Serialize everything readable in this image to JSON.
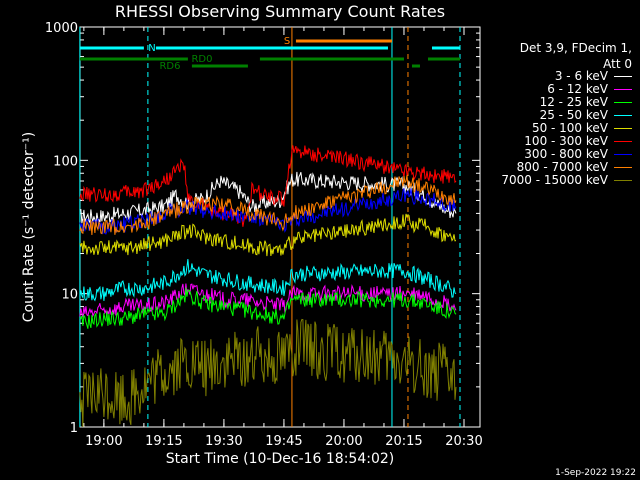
{
  "chart_data": {
    "type": "line",
    "title": "RHESSI Observing Summary Count Rates",
    "xlabel": "Start Time (10-Dec-16 18:54:02)",
    "ylabel": "Count Rate (s⁻¹ detector⁻¹)",
    "y_scale": "log",
    "ylim": [
      1,
      1000
    ],
    "y_ticks": [
      {
        "value": 1,
        "label": "1"
      },
      {
        "value": 10,
        "label": "10"
      },
      {
        "value": 100,
        "label": "100"
      },
      {
        "value": 1000,
        "label": "1000"
      }
    ],
    "xlim": [
      "18:54:02",
      "20:34:00"
    ],
    "x_ticks": [
      "19:00",
      "19:15",
      "19:30",
      "19:45",
      "20:00",
      "20:15",
      "20:30"
    ],
    "grid": false,
    "legend_position": "right",
    "series": [
      {
        "name": "3 - 6 keV",
        "color": "#ffffff",
        "points": [
          [
            "18:54",
            38
          ],
          [
            "19:00",
            38
          ],
          [
            "19:05",
            40
          ],
          [
            "19:10",
            42
          ],
          [
            "19:15",
            45
          ],
          [
            "19:18",
            55
          ],
          [
            "19:21",
            48
          ],
          [
            "19:25",
            52
          ],
          [
            "19:29",
            70
          ],
          [
            "19:31",
            65
          ],
          [
            "19:34",
            58
          ],
          [
            "19:37",
            45
          ],
          [
            "19:40",
            48
          ],
          [
            "19:44",
            50
          ],
          [
            "19:47",
            72
          ],
          [
            "20:15",
            65
          ],
          [
            "20:20",
            55
          ],
          [
            "20:24",
            45
          ],
          [
            "20:28",
            40
          ]
        ]
      },
      {
        "name": "6 - 12 keV",
        "color": "#ff00ff",
        "points": [
          [
            "18:54",
            7
          ],
          [
            "19:00",
            7.5
          ],
          [
            "19:05",
            8
          ],
          [
            "19:10",
            8
          ],
          [
            "19:15",
            8.5
          ],
          [
            "19:21",
            11
          ],
          [
            "19:25",
            10
          ],
          [
            "19:30",
            9
          ],
          [
            "19:35",
            9
          ],
          [
            "19:40",
            8.5
          ],
          [
            "19:45",
            8
          ],
          [
            "19:47",
            10
          ],
          [
            "20:15",
            10
          ],
          [
            "20:20",
            9.5
          ],
          [
            "20:25",
            8.5
          ],
          [
            "20:28",
            7.5
          ]
        ]
      },
      {
        "name": "12 - 25 keV",
        "color": "#00ff00",
        "points": [
          [
            "18:54",
            6
          ],
          [
            "19:00",
            6.5
          ],
          [
            "19:05",
            6.5
          ],
          [
            "19:10",
            7
          ],
          [
            "19:15",
            7
          ],
          [
            "19:21",
            10
          ],
          [
            "19:25",
            8.5
          ],
          [
            "19:30",
            8
          ],
          [
            "19:35",
            7.5
          ],
          [
            "19:40",
            7
          ],
          [
            "19:45",
            6.5
          ],
          [
            "19:47",
            9
          ],
          [
            "20:15",
            9
          ],
          [
            "20:20",
            8.5
          ],
          [
            "20:25",
            7.5
          ],
          [
            "20:28",
            7
          ]
        ]
      },
      {
        "name": "25 - 50 keV",
        "color": "#00ffff",
        "points": [
          [
            "18:54",
            10
          ],
          [
            "19:00",
            10
          ],
          [
            "19:05",
            11
          ],
          [
            "19:10",
            11
          ],
          [
            "19:15",
            12
          ],
          [
            "19:21",
            16
          ],
          [
            "19:25",
            14
          ],
          [
            "19:30",
            13
          ],
          [
            "19:35",
            12
          ],
          [
            "19:40",
            11.5
          ],
          [
            "19:45",
            11
          ],
          [
            "19:47",
            14
          ],
          [
            "20:15",
            15
          ],
          [
            "20:20",
            13
          ],
          [
            "20:25",
            11.5
          ],
          [
            "20:28",
            10
          ]
        ]
      },
      {
        "name": "50 - 100 keV",
        "color": "#dddd00",
        "points": [
          [
            "18:54",
            22
          ],
          [
            "19:00",
            22
          ],
          [
            "19:05",
            22
          ],
          [
            "19:10",
            23
          ],
          [
            "19:15",
            25
          ],
          [
            "19:21",
            30
          ],
          [
            "19:25",
            27
          ],
          [
            "19:30",
            25
          ],
          [
            "19:35",
            23
          ],
          [
            "19:40",
            22
          ],
          [
            "19:45",
            21
          ],
          [
            "19:47",
            25
          ],
          [
            "20:15",
            35
          ],
          [
            "20:20",
            32
          ],
          [
            "20:25",
            28
          ],
          [
            "20:28",
            25
          ]
        ]
      },
      {
        "name": "100 - 300 keV",
        "color": "#ff0000",
        "points": [
          [
            "18:54",
            55
          ],
          [
            "19:00",
            55
          ],
          [
            "19:05",
            57
          ],
          [
            "19:10",
            60
          ],
          [
            "19:15",
            70
          ],
          [
            "19:20",
            95
          ],
          [
            "19:21",
            50
          ],
          [
            "19:25",
            45
          ],
          [
            "19:30",
            40
          ],
          [
            "19:35",
            36
          ],
          [
            "19:37",
            60
          ],
          [
            "19:40",
            55
          ],
          [
            "19:45",
            50
          ],
          [
            "19:47",
            120
          ],
          [
            "20:15",
            85
          ],
          [
            "20:20",
            80
          ],
          [
            "20:25",
            75
          ],
          [
            "20:28",
            70
          ]
        ]
      },
      {
        "name": "300 - 800 keV",
        "color": "#0000ff",
        "points": [
          [
            "18:54",
            32
          ],
          [
            "19:00",
            32
          ],
          [
            "19:05",
            33
          ],
          [
            "19:10",
            35
          ],
          [
            "19:15",
            40
          ],
          [
            "19:21",
            45
          ],
          [
            "19:25",
            42
          ],
          [
            "19:30",
            40
          ],
          [
            "19:35",
            38
          ],
          [
            "19:40",
            35
          ],
          [
            "19:45",
            33
          ],
          [
            "19:47",
            35
          ],
          [
            "20:15",
            55
          ],
          [
            "20:20",
            52
          ],
          [
            "20:25",
            48
          ],
          [
            "20:28",
            45
          ]
        ]
      },
      {
        "name": "800 - 7000 keV",
        "color": "#ff8000",
        "points": [
          [
            "18:54",
            32
          ],
          [
            "19:00",
            31
          ],
          [
            "19:05",
            32
          ],
          [
            "19:10",
            34
          ],
          [
            "19:15",
            38
          ],
          [
            "19:20",
            45
          ],
          [
            "19:25",
            47
          ],
          [
            "19:30",
            46
          ],
          [
            "19:35",
            42
          ],
          [
            "19:40",
            37
          ],
          [
            "19:45",
            34
          ],
          [
            "19:47",
            40
          ],
          [
            "20:15",
            70
          ],
          [
            "20:20",
            62
          ],
          [
            "20:25",
            55
          ],
          [
            "20:28",
            50
          ]
        ]
      },
      {
        "name": "7000 - 15000 keV",
        "color": "#808000",
        "points": [
          [
            "18:54",
            1.5
          ],
          [
            "19:00",
            1.8
          ],
          [
            "19:05",
            1.6
          ],
          [
            "19:10",
            2
          ],
          [
            "19:15",
            2.5
          ],
          [
            "19:20",
            3
          ],
          [
            "19:25",
            2.8
          ],
          [
            "19:30",
            3
          ],
          [
            "19:35",
            3.2
          ],
          [
            "19:40",
            3.5
          ],
          [
            "19:45",
            3.5
          ],
          [
            "19:47",
            4
          ],
          [
            "20:15",
            3
          ],
          [
            "20:20",
            2.8
          ],
          [
            "20:25",
            2.5
          ],
          [
            "20:28",
            2
          ]
        ]
      }
    ],
    "vertical_markers": [
      {
        "time": "18:54",
        "color": "#00ffff",
        "style": "solid"
      },
      {
        "time": "19:11",
        "color": "#00ffff",
        "style": "dashed"
      },
      {
        "time": "19:47",
        "color": "#ff8000",
        "style": "solid"
      },
      {
        "time": "20:12",
        "color": "#00ffff",
        "style": "solid"
      },
      {
        "time": "20:16",
        "color": "#ff8000",
        "style": "dashed"
      },
      {
        "time": "20:29",
        "color": "#00ffff",
        "style": "dashed"
      }
    ],
    "flag_bars": [
      {
        "label": "N",
        "color": "#00ffff",
        "segments": [
          [
            "18:54",
            "19:10"
          ],
          [
            "19:13",
            "20:11"
          ],
          [
            "20:22",
            "20:29"
          ]
        ]
      },
      {
        "label": "S",
        "color": "#ff8000",
        "segments": [
          [
            "19:48",
            "20:12"
          ]
        ]
      },
      {
        "label": "RD0",
        "color": "#008000",
        "segments": [
          [
            "18:54",
            "19:21"
          ],
          [
            "19:39",
            "20:15"
          ],
          [
            "20:21",
            "20:29"
          ]
        ]
      },
      {
        "label": "RD6",
        "color": "#008000",
        "segments": [
          [
            "19:22",
            "19:36"
          ],
          [
            "20:17",
            "20:19"
          ]
        ]
      }
    ]
  },
  "legend": {
    "header_lines": [
      "Det 3,9, FDecim 1,",
      "Att 0"
    ]
  },
  "footer": {
    "date": "1-Sep-2022 19:22"
  }
}
